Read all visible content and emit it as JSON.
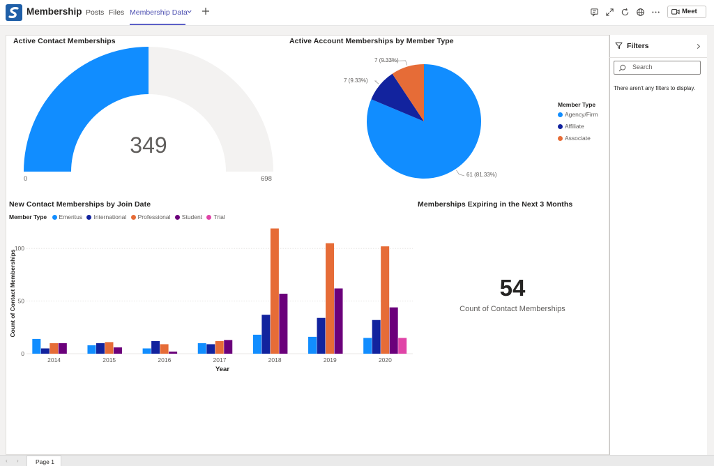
{
  "app": {
    "title": "Membership",
    "tabs": [
      {
        "label": "Posts"
      },
      {
        "label": "Files"
      },
      {
        "label": "Membership Data",
        "active": true
      }
    ],
    "toolbar_icons": [
      "conversation-icon",
      "expand-icon",
      "refresh-icon",
      "globe-icon",
      "more-icon"
    ],
    "meet_label": "Meet",
    "accent_color": "#5b5fc7"
  },
  "gauge": {
    "title": "Active Contact Memberships",
    "value": "349",
    "min": "0",
    "max": "698",
    "fill_fraction": 0.5,
    "fill_color": "#118dff",
    "track_color": "#f3f2f1"
  },
  "pie": {
    "title": "Active Account Memberships by Member Type",
    "legend_title": "Member Type",
    "slices": [
      {
        "name": "Agency/Firm",
        "value": 61,
        "label": "61 (81.33%)",
        "color": "#118dff"
      },
      {
        "name": "Affiliate",
        "value": 7,
        "label": "7 (9.33%)",
        "color": "#12239e"
      },
      {
        "name": "Associate",
        "value": 7,
        "label": "7 (9.33%)",
        "color": "#e66c37"
      }
    ]
  },
  "bar_chart": {
    "title": "New Contact Memberships by Join Date",
    "legend_title": "Member Type",
    "xlabel": "Year",
    "ylabel": "Count of Contact Memberships"
  },
  "chart_data": {
    "type": "bar",
    "title": "New Contact Memberships by Join Date",
    "xlabel": "Year",
    "ylabel": "Count of Contact Memberships",
    "categories": [
      "2014",
      "2015",
      "2016",
      "2017",
      "2018",
      "2019",
      "2020"
    ],
    "yticks": [
      0,
      50,
      100
    ],
    "ylim": [
      0,
      120
    ],
    "grid": true,
    "legend": "top-left",
    "series": [
      {
        "name": "Emeritus",
        "color": "#118dff",
        "values": [
          14,
          8,
          5,
          10,
          18,
          16,
          15
        ]
      },
      {
        "name": "International",
        "color": "#12239e",
        "values": [
          5,
          10,
          12,
          9,
          37,
          34,
          32
        ]
      },
      {
        "name": "Professional",
        "color": "#e66c37",
        "values": [
          10,
          11,
          9,
          12,
          119,
          105,
          102
        ]
      },
      {
        "name": "Student",
        "color": "#6b007b",
        "values": [
          10,
          6,
          2,
          13,
          57,
          62,
          44
        ]
      },
      {
        "name": "Trial",
        "color": "#e044a7",
        "values": [
          null,
          null,
          null,
          null,
          null,
          null,
          15
        ]
      }
    ]
  },
  "card": {
    "title": "Memberships Expiring in the Next 3 Months",
    "value": "54",
    "label": "Count of Contact Memberships"
  },
  "filters": {
    "title": "Filters",
    "search_placeholder": "Search",
    "empty_text": "There aren't any filters to display."
  },
  "pages": [
    {
      "label": "Page 1",
      "active": true
    }
  ]
}
